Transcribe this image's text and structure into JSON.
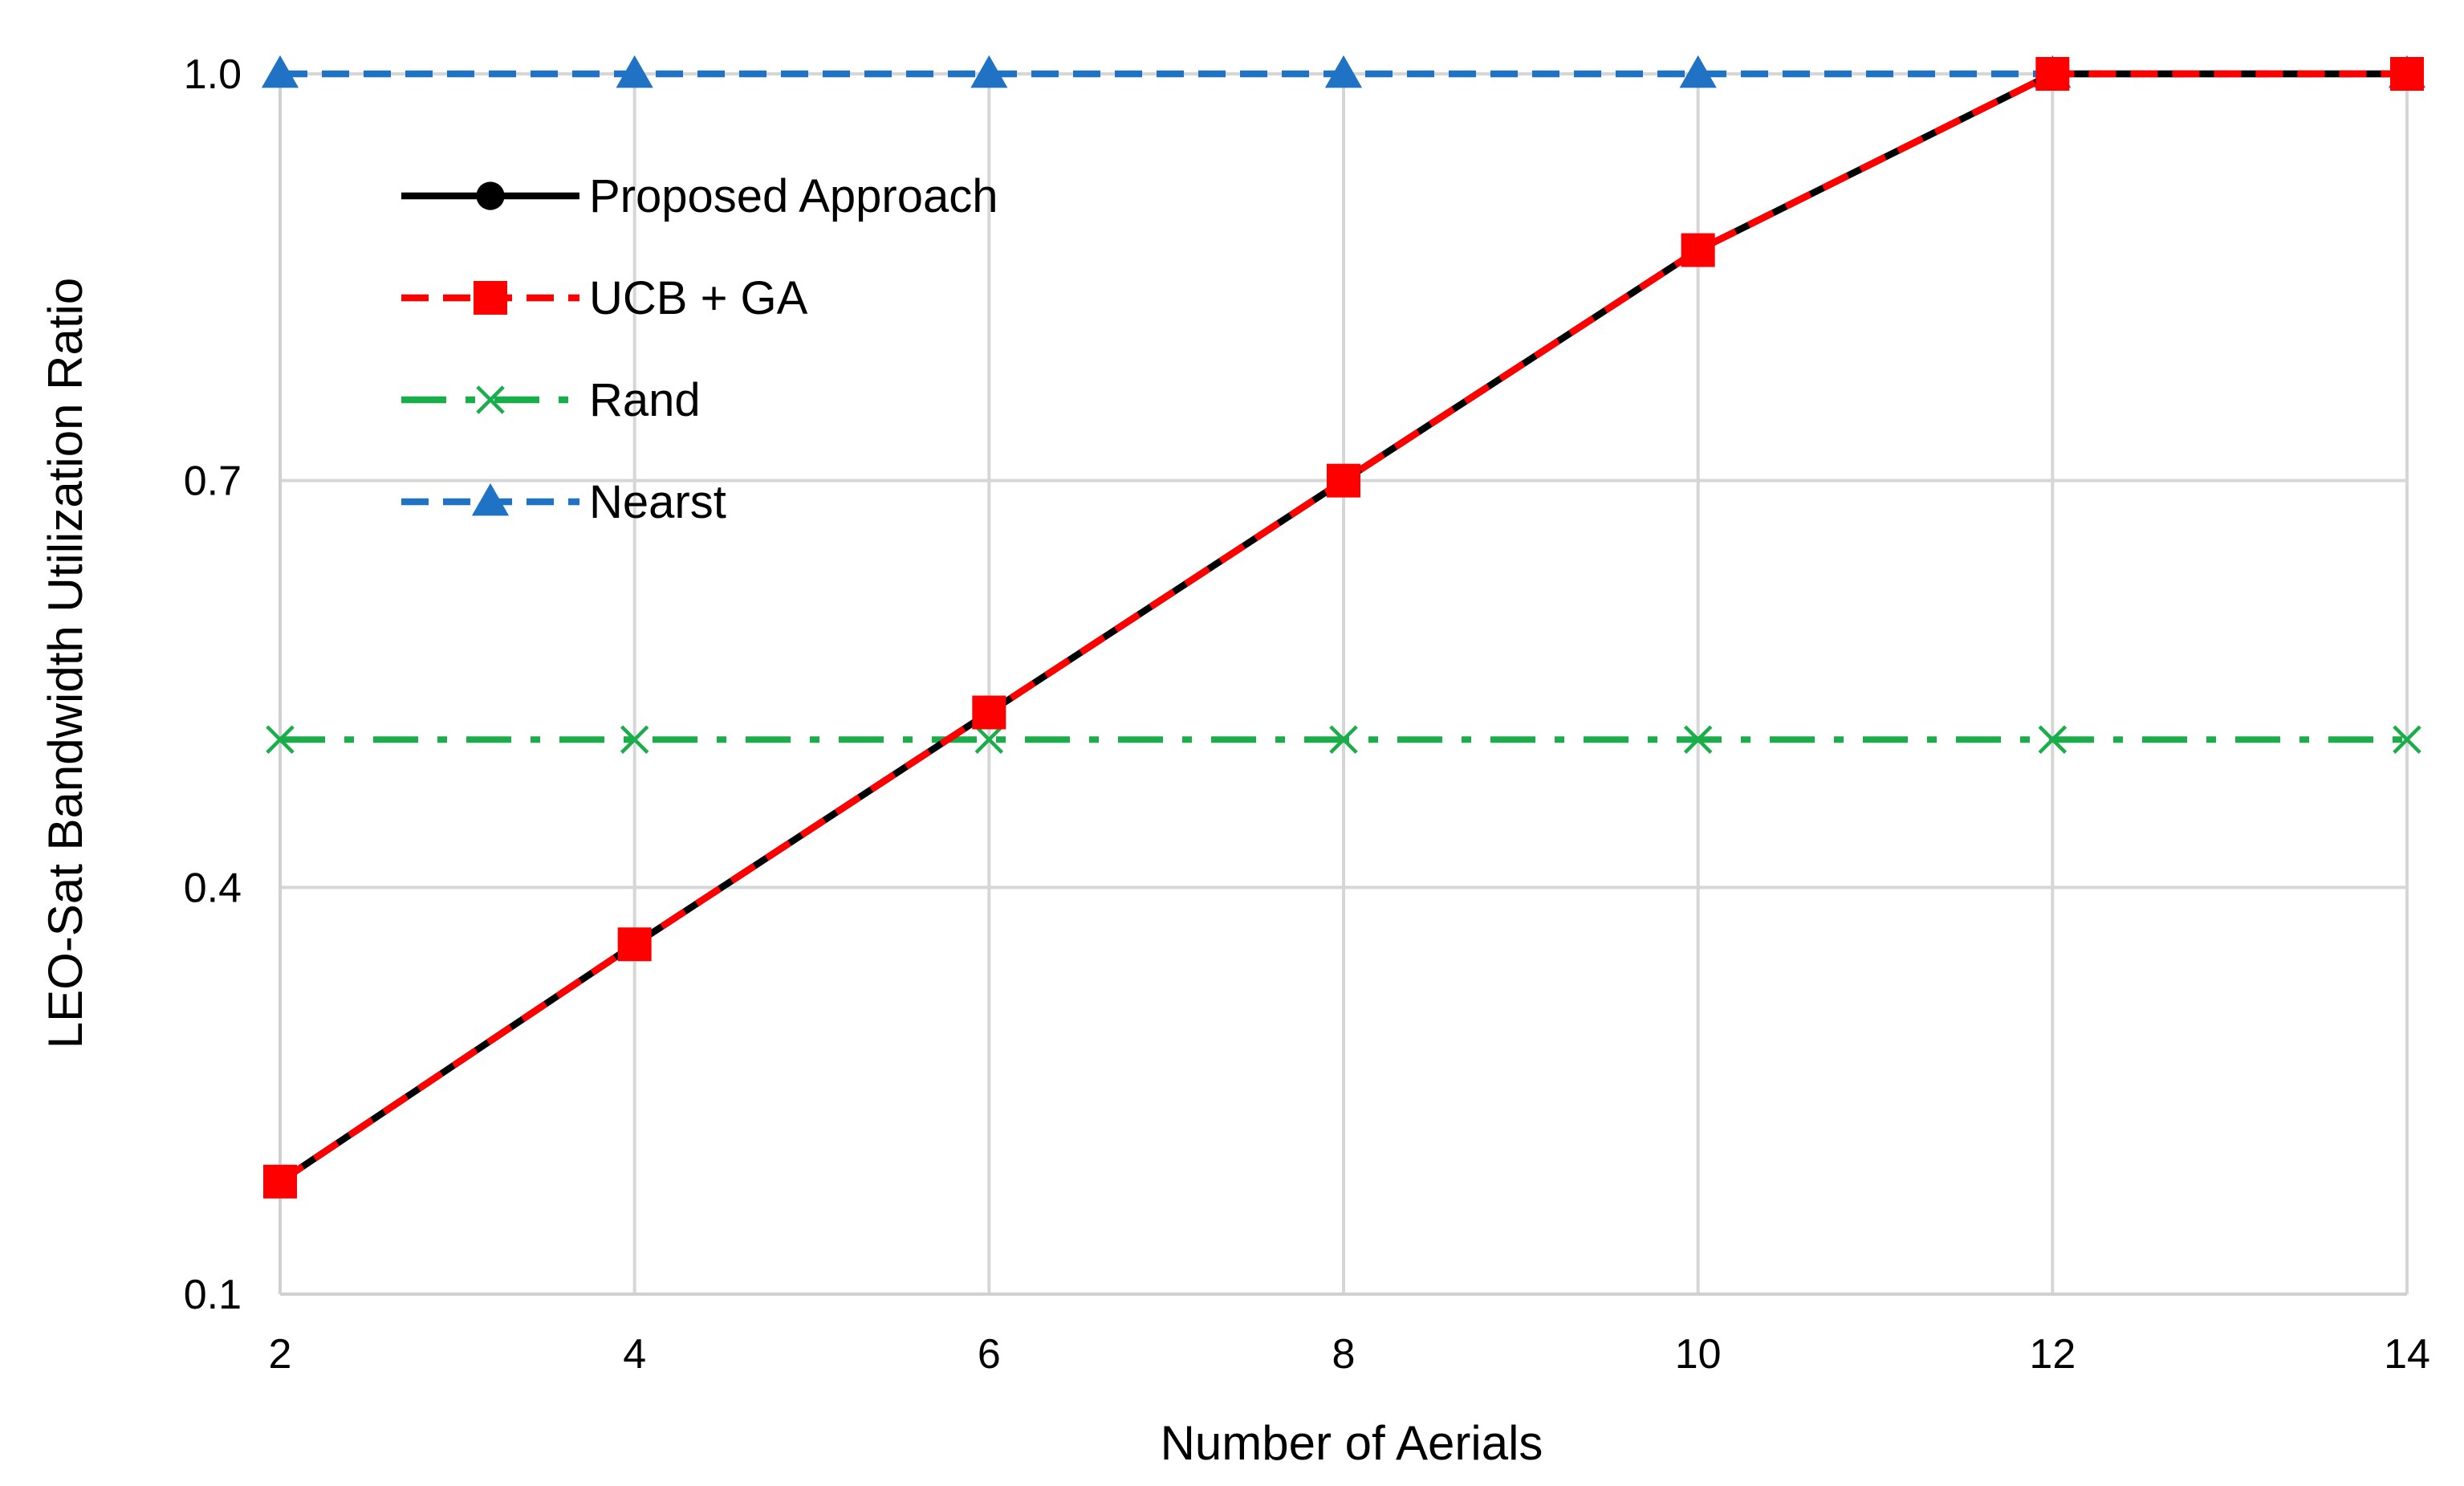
{
  "chart_data": {
    "type": "line",
    "title": "",
    "xlabel": "Number of Aerials",
    "ylabel": "LEO-Sat Bandwidth Utilization Ratio",
    "x": [
      2,
      4,
      6,
      8,
      10,
      12,
      14
    ],
    "x_ticks": [
      "2",
      "4",
      "6",
      "8",
      "10",
      "12",
      "14"
    ],
    "y_ticks": [
      "0.1",
      "0.4",
      "0.7",
      "1.0"
    ],
    "xlim": [
      2,
      14
    ],
    "ylim": [
      0.1,
      1.0
    ],
    "grid": true,
    "legend_position": "top-left",
    "series": [
      {
        "name": "Proposed Approach",
        "values": [
          0.183,
          0.358,
          0.529,
          0.7,
          0.87,
          1.0,
          1.0
        ],
        "color": "#000000",
        "line_style": "solid",
        "marker": "circle"
      },
      {
        "name": "UCB + GA",
        "values": [
          0.183,
          0.358,
          0.529,
          0.7,
          0.87,
          1.0,
          1.0
        ],
        "color": "#ff0000",
        "line_style": "dashed",
        "marker": "square"
      },
      {
        "name": "Rand",
        "values": [
          0.509,
          0.509,
          0.509,
          0.509,
          0.509,
          0.509,
          0.509
        ],
        "color": "#1aae4a",
        "line_style": "dash-dot",
        "marker": "x"
      },
      {
        "name": "Nearst",
        "values": [
          1.0,
          1.0,
          1.0,
          1.0,
          1.0,
          1.0,
          1.0
        ],
        "color": "#1f72c4",
        "line_style": "dashed",
        "marker": "triangle"
      }
    ]
  }
}
